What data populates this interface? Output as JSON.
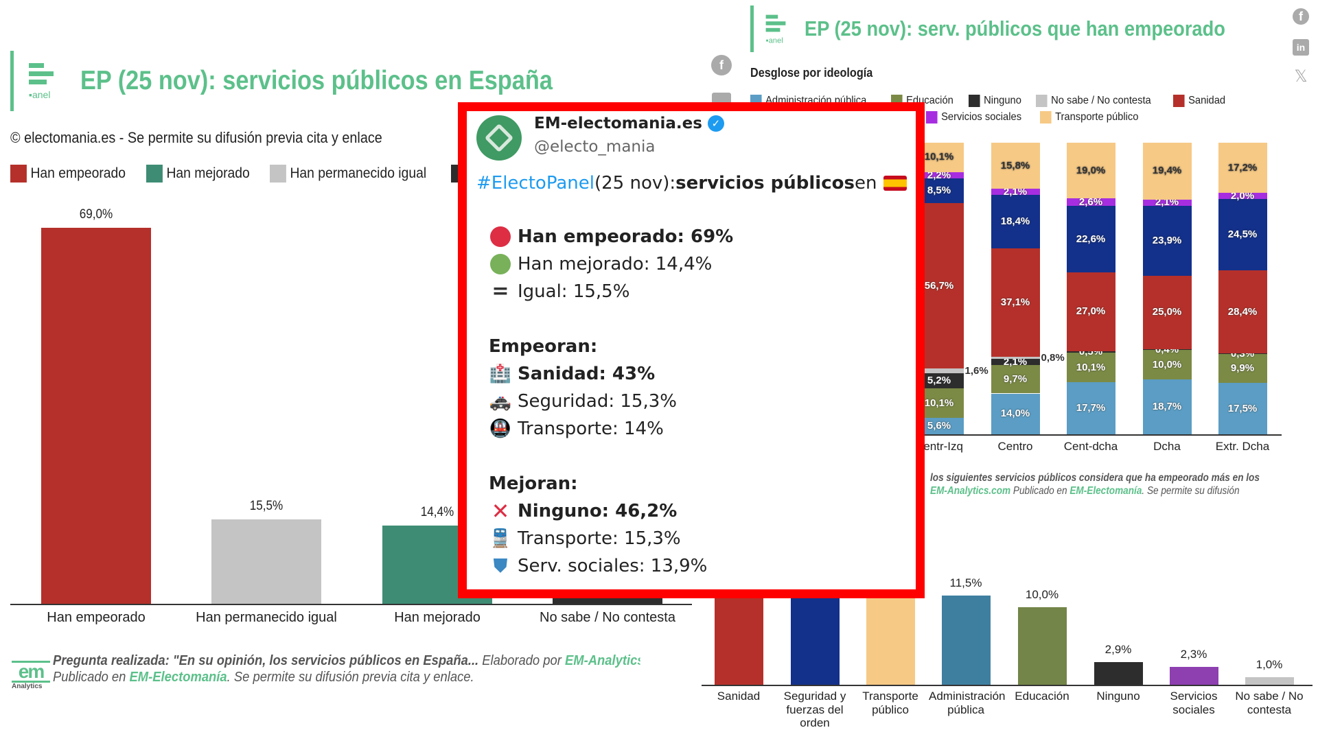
{
  "left": {
    "title": "EP (25 nov): servicios públicos en España",
    "logo_text": "Electo Panel",
    "subtitle": "© electomania.es - Se permite su difusión previa cita y enlace",
    "legend": [
      {
        "label": "Han empeorado",
        "color": "#b5302a"
      },
      {
        "label": "Han mejorado",
        "color": "#3e8c74"
      },
      {
        "label": "Han permanecido igual",
        "color": "#c4c4c4"
      },
      {
        "label": "",
        "color": "#2d2d2d"
      }
    ],
    "footer_q": "Pregunta realizada: \"En su opinión, los servicios públicos en España...",
    "footer_by": " Elaborado por ",
    "footer_link": "EM-Analytics.com",
    "footer_pub": "Publicado en ",
    "footer_pub_link": "EM-Electomanía",
    "footer_rest": ". Se permite su difusión previa cita y enlace.",
    "footer_logo": "em",
    "footer_logo_sub": "Analytics"
  },
  "right": {
    "title": "EP (25 nov): serv. públicos que han empeorado",
    "logo_text": "Electo Panel",
    "subtitle": "Desglose por ideología",
    "legend": [
      {
        "label": "Administración pública",
        "color": "#5b9dc4"
      },
      {
        "label": "Educación",
        "color": "#7b8a45"
      },
      {
        "label": "Ninguno",
        "color": "#2d2d2d"
      },
      {
        "label": "No sabe / No contesta",
        "color": "#c4c4c4"
      },
      {
        "label": "Sanidad",
        "color": "#b5302a"
      },
      {
        "label": "Servicios sociales",
        "color": "#a72ee0"
      },
      {
        "label": "Transporte público",
        "color": "#f6c985"
      }
    ],
    "footer_q": "los siguientes servicios públicos considera que ha empeorado más en los",
    "footer_link": "EM-Analytics.com",
    "footer_pub": " Publicado en ",
    "footer_pub_link": "EM-Electomanía",
    "footer_rest": ". Se permite su difusión"
  },
  "social": [
    "facebook-icon",
    "linkedin-icon",
    "x-icon"
  ],
  "tweet": {
    "name": "EM-electomania.es",
    "handle": "@electo_mania",
    "hashtag": "#ElectoPanel",
    "intro_mid": " (25 nov): ",
    "intro_bold": "servicios públicos",
    "intro_end": " en",
    "lines": [
      {
        "icon": "red-circle-icon",
        "text": "Han empeorado: 69%",
        "bold": true
      },
      {
        "icon": "green-circle-icon",
        "text": "Han mejorado: 14,4%",
        "bold": false
      },
      {
        "icon": "equals-icon",
        "text": "Igual: 15,5%",
        "bold": false
      }
    ],
    "empeoran_title": "Empeoran:",
    "empeoran": [
      {
        "icon": "hospital-icon",
        "text": "Sanidad: 43%",
        "bold": true
      },
      {
        "icon": "police-car-icon",
        "text": "Seguridad: 15,3%",
        "bold": false
      },
      {
        "icon": "metro-icon",
        "text": "Transporte: 14%",
        "bold": false
      }
    ],
    "mejoran_title": "Mejoran:",
    "mejoran": [
      {
        "icon": "cross-mark-icon",
        "text": "Ninguno: 46,2%",
        "bold": true
      },
      {
        "icon": "train-icon",
        "text": "Transporte: 15,3%",
        "bold": false
      },
      {
        "icon": "shield-icon",
        "text": "Serv. sociales: 13,9%",
        "bold": false
      }
    ]
  },
  "chart_data": [
    {
      "type": "bar",
      "title": "EP (25 nov): servicios públicos en España",
      "categories": [
        "Han empeorado",
        "Han permanecido igual",
        "Han mejorado",
        "No sabe / No contesta"
      ],
      "values": [
        69.0,
        15.5,
        14.4,
        1.1
      ],
      "labels": [
        "69,0%",
        "15,5%",
        "14,4%",
        ""
      ],
      "colors": [
        "#b5302a",
        "#c4c4c4",
        "#3e8c74",
        "#2d2d2d"
      ],
      "ylim": [
        0,
        69
      ]
    },
    {
      "type": "bar",
      "subtitle": "Desglose por ideología",
      "stacked": true,
      "categories": [
        "Centr-Izq",
        "Centro",
        "Cent-dcha",
        "Dcha",
        "Extr. Dcha"
      ],
      "series": [
        {
          "name": "Administración pública",
          "color": "#5b9dc4",
          "values": [
            5.6,
            14.0,
            17.7,
            18.7,
            17.5
          ]
        },
        {
          "name": "Educación",
          "color": "#7b8a45",
          "values": [
            10.1,
            9.7,
            10.1,
            10.0,
            9.9
          ]
        },
        {
          "name": "Ninguno",
          "color": "#2d2d2d",
          "values": [
            5.2,
            2.1,
            0.5,
            0.4,
            0.3
          ]
        },
        {
          "name": "No sabe / No contesta",
          "color": "#c4c4c4",
          "values": [
            1.6,
            0.8,
            null,
            null,
            null
          ]
        },
        {
          "name": "Sanidad",
          "color": "#b5302a",
          "values": [
            56.7,
            37.1,
            27.0,
            25.0,
            28.4
          ]
        },
        {
          "name": "Seguridad y fuerzas del orden",
          "color": "#13308a",
          "values": [
            8.5,
            18.4,
            22.6,
            23.9,
            24.5
          ]
        },
        {
          "name": "Servicios sociales",
          "color": "#a72ee0",
          "values": [
            2.2,
            2.1,
            2.6,
            2.1,
            2.0
          ]
        },
        {
          "name": "Transporte público",
          "color": "#f6c985",
          "values": [
            10.1,
            15.8,
            19.0,
            19.4,
            17.2
          ]
        }
      ],
      "ylim": [
        0,
        100
      ]
    },
    {
      "type": "bar",
      "categories": [
        "Sanidad",
        "Seguridad y fuerzas del orden",
        "Transporte público",
        "Administración pública",
        "Educación",
        "Ninguno",
        "Servicios sociales",
        "No sabe / No contesta"
      ],
      "values": [
        43.0,
        15.3,
        14.0,
        11.5,
        10.0,
        2.9,
        2.3,
        1.0
      ],
      "labels": [
        "",
        "",
        "",
        "11,5%",
        "10,0%",
        "2,9%",
        "2,3%",
        "1,0%"
      ],
      "colors": [
        "#b5302a",
        "#13308a",
        "#f6c985",
        "#3e7fa0",
        "#738548",
        "#2d2d2d",
        "#8e3fb0",
        "#c4c4c4"
      ]
    }
  ]
}
